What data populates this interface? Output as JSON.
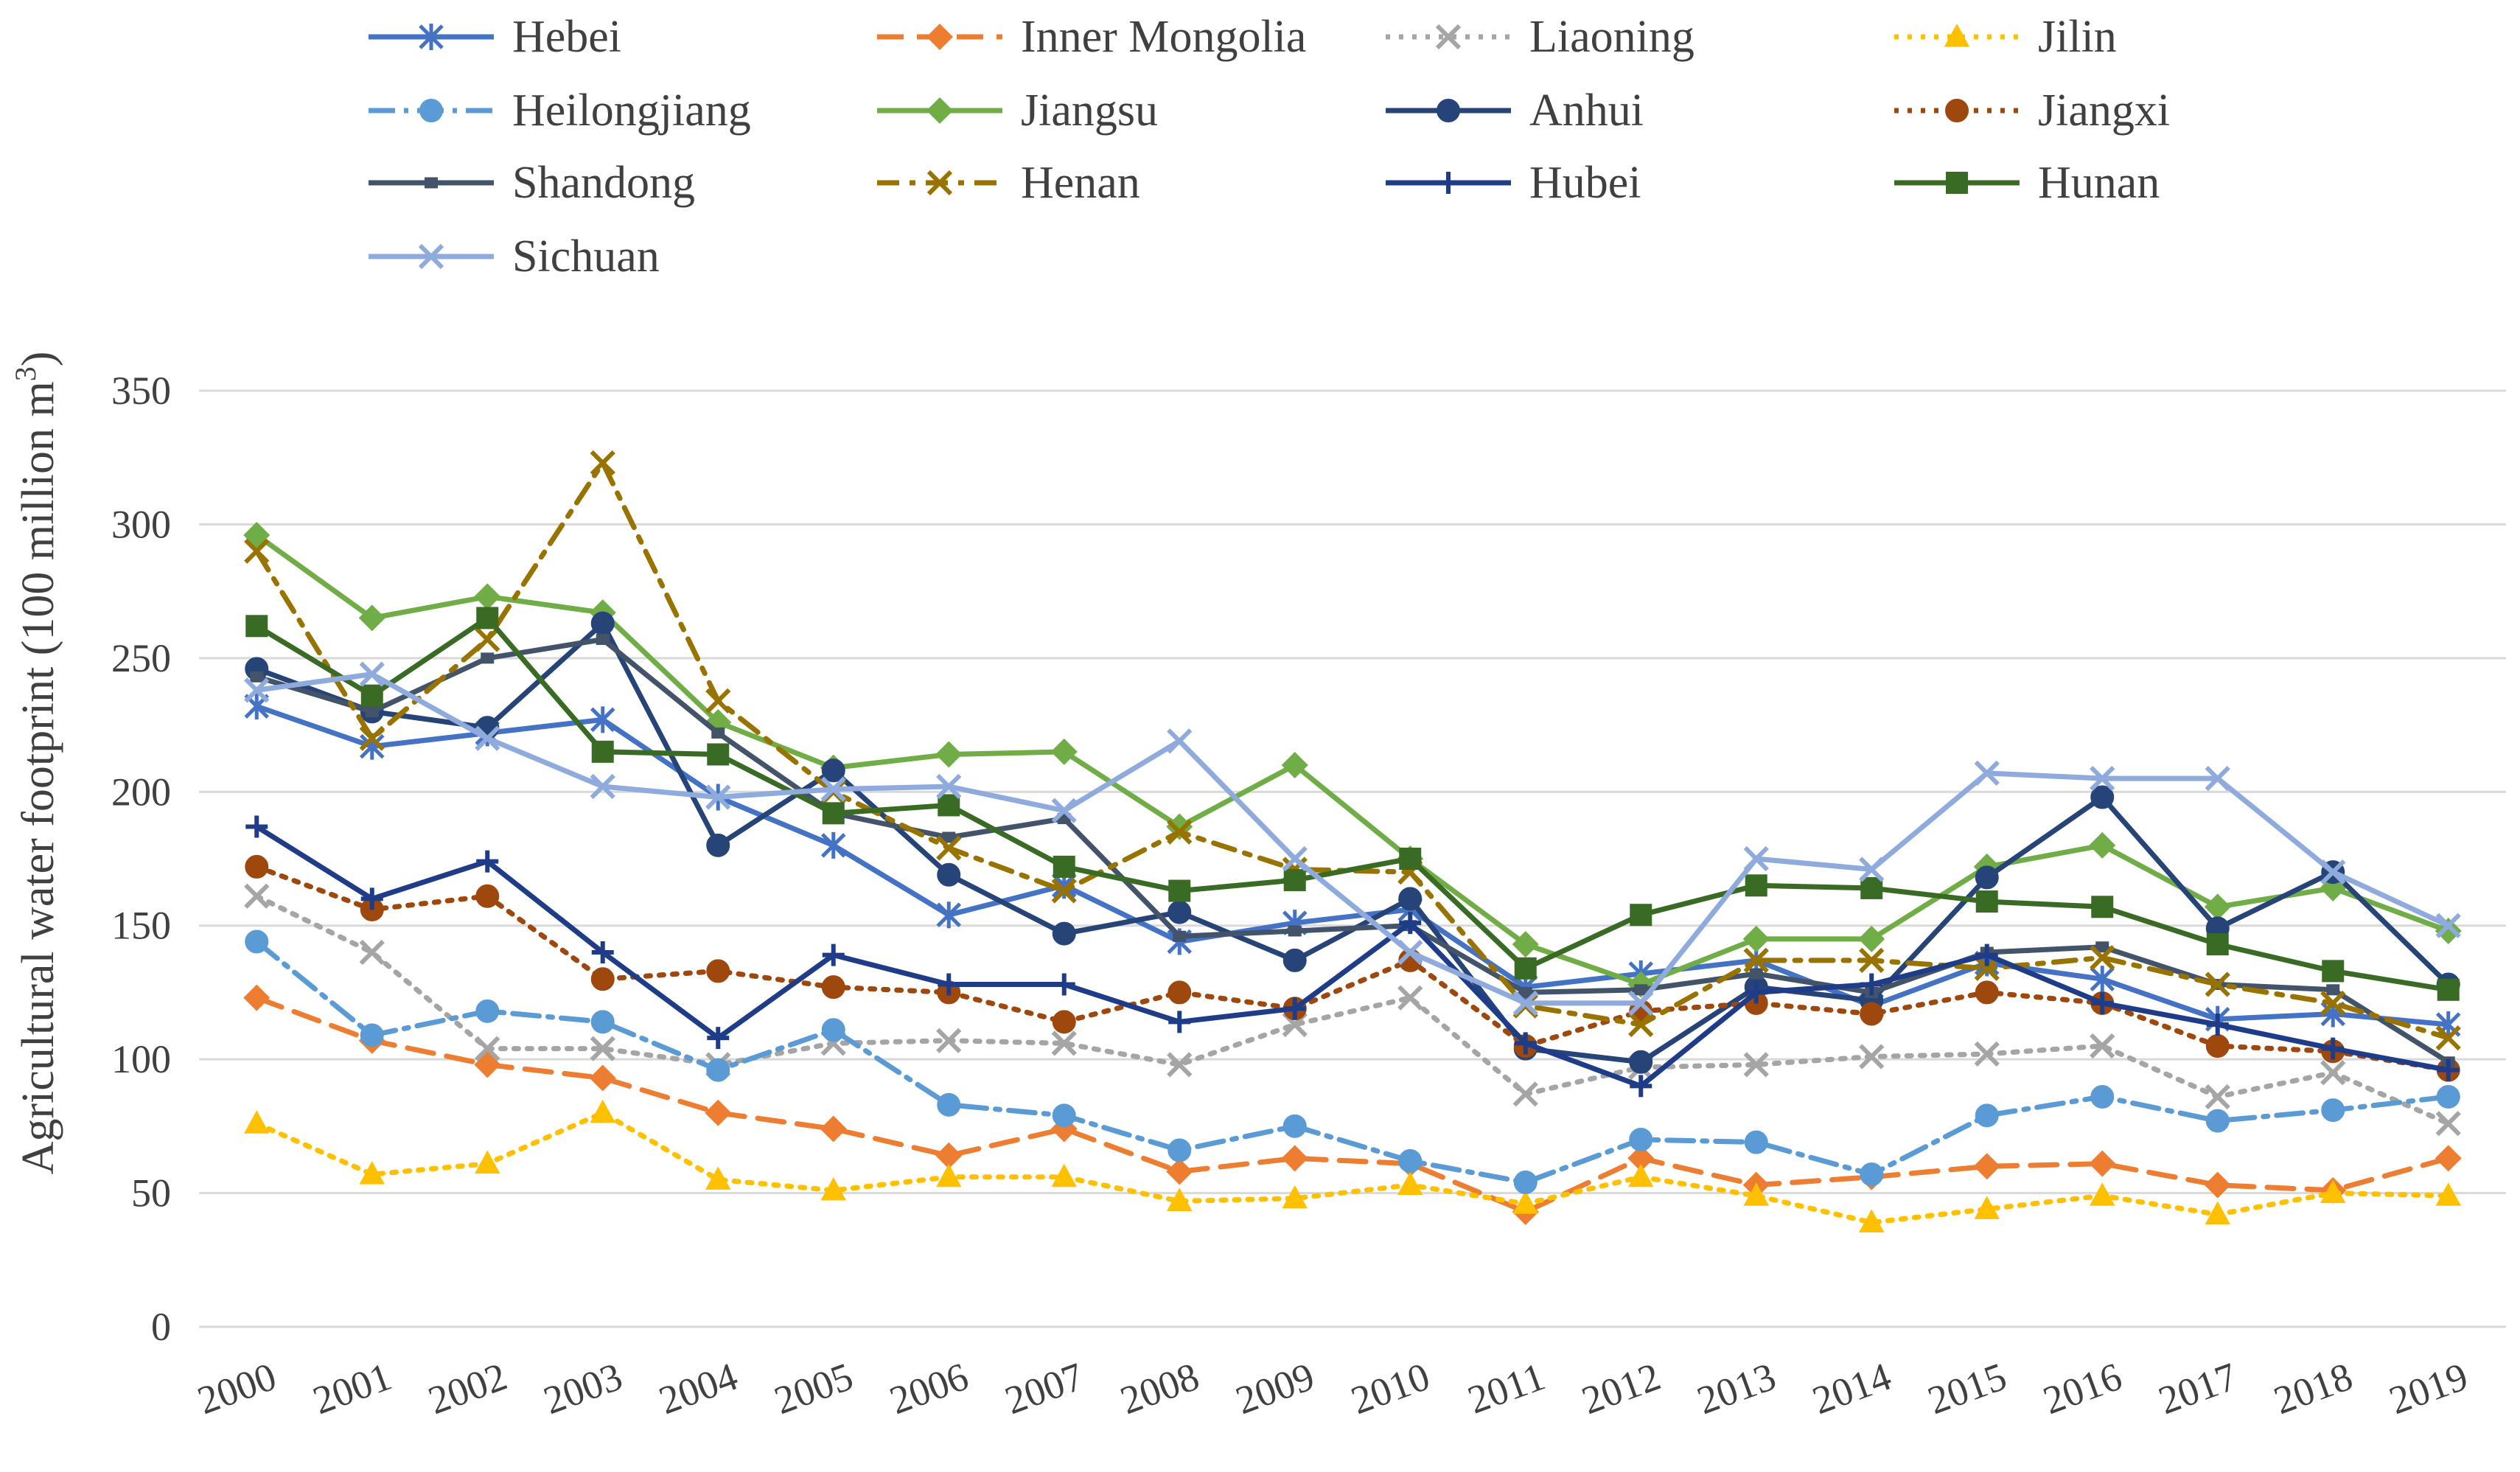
{
  "chart_data": {
    "type": "line",
    "title": "",
    "xlabel": "",
    "ylabel": "Agricultural water footprint (100 million m³)",
    "ylabel_main": "Agricultural water footprint (100 million m",
    "ylabel_sup": "3",
    "ylabel_end": ")",
    "ylim": [
      0,
      350
    ],
    "yticks": [
      0,
      50,
      100,
      150,
      200,
      250,
      300,
      350
    ],
    "ytick_labels": [
      "0",
      "50",
      "100",
      "150",
      "200",
      "250",
      "300",
      "350"
    ],
    "grid": true,
    "legend_position": "top",
    "categories": [
      "2000",
      "2001",
      "2002",
      "2003",
      "2004",
      "2005",
      "2006",
      "2007",
      "2008",
      "2009",
      "2010",
      "2011",
      "2012",
      "2013",
      "2014",
      "2015",
      "2016",
      "2017",
      "2018",
      "2019"
    ],
    "series": [
      {
        "name": "Hebei",
        "color": "#4472C4",
        "dash": "",
        "marker": "asterisk",
        "values": [
          232,
          217,
          222,
          227,
          198,
          180,
          154,
          165,
          144,
          151,
          156,
          127,
          132,
          137,
          120,
          136,
          130,
          115,
          117,
          113
        ]
      },
      {
        "name": "Inner Mongolia",
        "color": "#ED7D31",
        "dash": "36 18",
        "marker": "diamond",
        "values": [
          123,
          107,
          98,
          93,
          80,
          74,
          64,
          74,
          58,
          63,
          61,
          43,
          63,
          53,
          56,
          60,
          61,
          53,
          51,
          63
        ]
      },
      {
        "name": "Liaoning",
        "color": "#A5A5A5",
        "dash": "6 12",
        "marker": "x",
        "values": [
          161,
          140,
          104,
          104,
          98,
          106,
          107,
          106,
          98,
          113,
          123,
          87,
          97,
          98,
          101,
          102,
          105,
          86,
          95,
          76
        ]
      },
      {
        "name": "Jilin",
        "color": "#FFC000",
        "dash": "6 12",
        "marker": "triangle",
        "values": [
          76,
          57,
          61,
          80,
          55,
          51,
          56,
          56,
          47,
          48,
          53,
          46,
          56,
          49,
          39,
          44,
          49,
          42,
          50,
          49
        ]
      },
      {
        "name": "Heilongjiang",
        "color": "#5B9BD5",
        "dash": "36 12 6 12",
        "marker": "circle",
        "values": [
          144,
          109,
          118,
          114,
          96,
          111,
          83,
          79,
          66,
          75,
          62,
          54,
          70,
          69,
          57,
          79,
          86,
          77,
          81,
          86
        ]
      },
      {
        "name": "Jiangsu",
        "color": "#70AD47",
        "dash": "",
        "marker": "diamond",
        "values": [
          296,
          265,
          273,
          267,
          226,
          209,
          214,
          215,
          187,
          210,
          175,
          143,
          128,
          145,
          145,
          172,
          180,
          157,
          164,
          148
        ]
      },
      {
        "name": "Anhui",
        "color": "#264478",
        "dash": "",
        "marker": "circle",
        "values": [
          246,
          230,
          224,
          263,
          180,
          208,
          169,
          147,
          155,
          137,
          160,
          104,
          99,
          127,
          122,
          168,
          198,
          149,
          170,
          128
        ]
      },
      {
        "name": "Jiangxi",
        "color": "#9E480E",
        "dash": "6 12",
        "marker": "circle",
        "values": [
          172,
          156,
          161,
          130,
          133,
          127,
          125,
          114,
          125,
          119,
          137,
          105,
          118,
          121,
          117,
          125,
          121,
          105,
          103,
          96
        ]
      },
      {
        "name": "Shandong",
        "color": "#43536A",
        "dash": "",
        "marker": "dash",
        "values": [
          243,
          230,
          250,
          257,
          222,
          192,
          183,
          190,
          146,
          148,
          150,
          125,
          126,
          132,
          125,
          140,
          142,
          128,
          126,
          99
        ]
      },
      {
        "name": "Henan",
        "color": "#997300",
        "dash": "30 14 8 14",
        "marker": "x",
        "values": [
          290,
          220,
          257,
          323,
          234,
          200,
          179,
          163,
          185,
          171,
          170,
          120,
          113,
          137,
          137,
          134,
          138,
          128,
          121,
          108
        ]
      },
      {
        "name": "Hubei",
        "color": "#1F3C88",
        "dash": "",
        "marker": "plus",
        "values": [
          187,
          160,
          174,
          140,
          108,
          139,
          128,
          128,
          114,
          119,
          151,
          106,
          90,
          125,
          128,
          139,
          121,
          113,
          104,
          96
        ]
      },
      {
        "name": "Hunan",
        "color": "#3A6B24",
        "dash": "",
        "marker": "square",
        "values": [
          262,
          236,
          265,
          215,
          214,
          192,
          195,
          172,
          163,
          167,
          175,
          134,
          154,
          165,
          164,
          159,
          157,
          143,
          133,
          126
        ]
      },
      {
        "name": "Sichuan",
        "color": "#8FAADC",
        "dash": "",
        "marker": "x",
        "values": [
          238,
          244,
          220,
          202,
          198,
          201,
          202,
          193,
          219,
          175,
          140,
          121,
          121,
          175,
          171,
          207,
          205,
          205,
          170,
          150
        ]
      }
    ]
  }
}
